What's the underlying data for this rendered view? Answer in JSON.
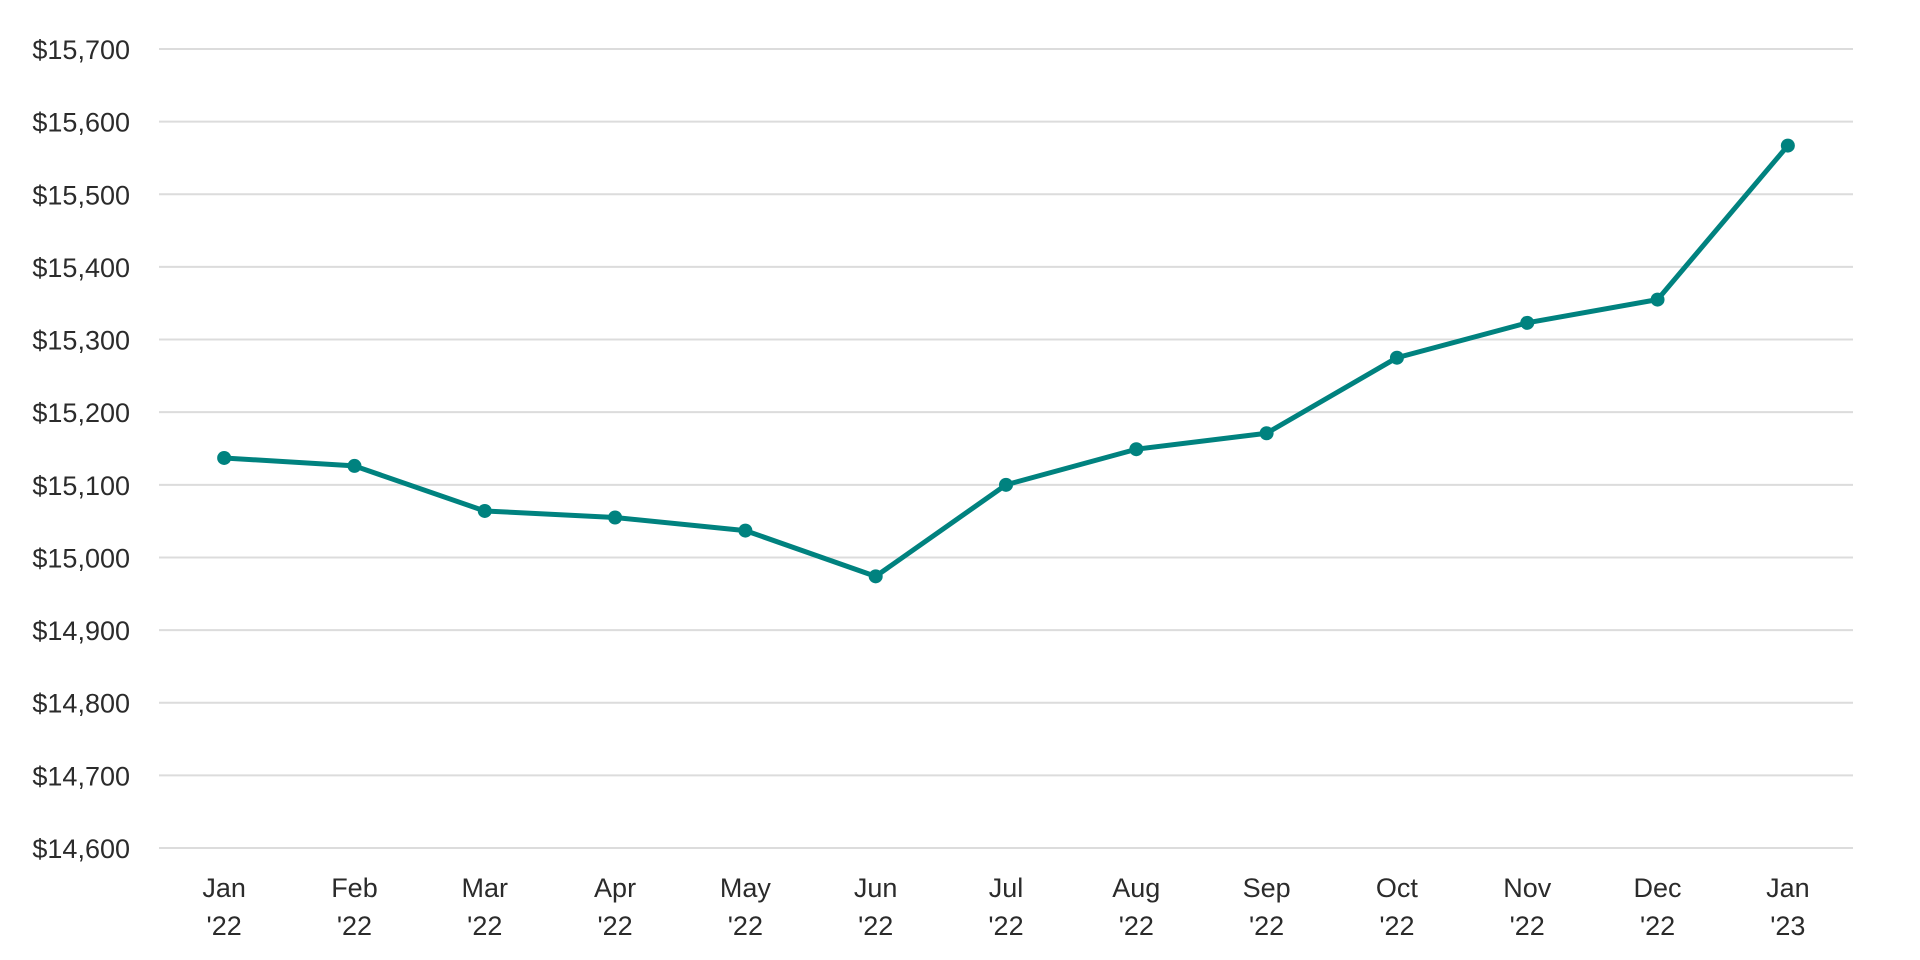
{
  "colors": {
    "series": "#00827f",
    "grid": "#dcdcdc",
    "text": "#2b2b2b",
    "background": "#ffffff"
  },
  "chart_data": {
    "type": "line",
    "title": "",
    "xlabel": "",
    "ylabel": "",
    "categories": [
      [
        "Jan",
        "'22"
      ],
      [
        "Feb",
        "'22"
      ],
      [
        "Mar",
        "'22"
      ],
      [
        "Apr",
        "'22"
      ],
      [
        "May",
        "'22"
      ],
      [
        "Jun",
        "'22"
      ],
      [
        "Jul",
        "'22"
      ],
      [
        "Aug",
        "'22"
      ],
      [
        "Sep",
        "'22"
      ],
      [
        "Oct",
        "'22"
      ],
      [
        "Nov",
        "'22"
      ],
      [
        "Dec",
        "'22"
      ],
      [
        "Jan",
        "'23"
      ]
    ],
    "series": [
      {
        "name": "Value",
        "color": "#00827f",
        "values": [
          15137,
          15126,
          15064,
          15055,
          15037,
          14974,
          15100,
          15149,
          15171,
          15275,
          15323,
          15355,
          15567
        ]
      }
    ],
    "ylim": [
      14600,
      15700
    ],
    "y_ticks": [
      15700,
      15600,
      15500,
      15400,
      15300,
      15200,
      15100,
      15000,
      14900,
      14800,
      14700,
      14600
    ],
    "y_tick_labels": [
      "$15,700",
      "$15,600",
      "$15,500",
      "$15,400",
      "$15,300",
      "$15,200",
      "$15,100",
      "$15,000",
      "$14,900",
      "$14,800",
      "$14,700",
      "$14,600"
    ],
    "grid": true,
    "legend": "none",
    "markers": true
  }
}
